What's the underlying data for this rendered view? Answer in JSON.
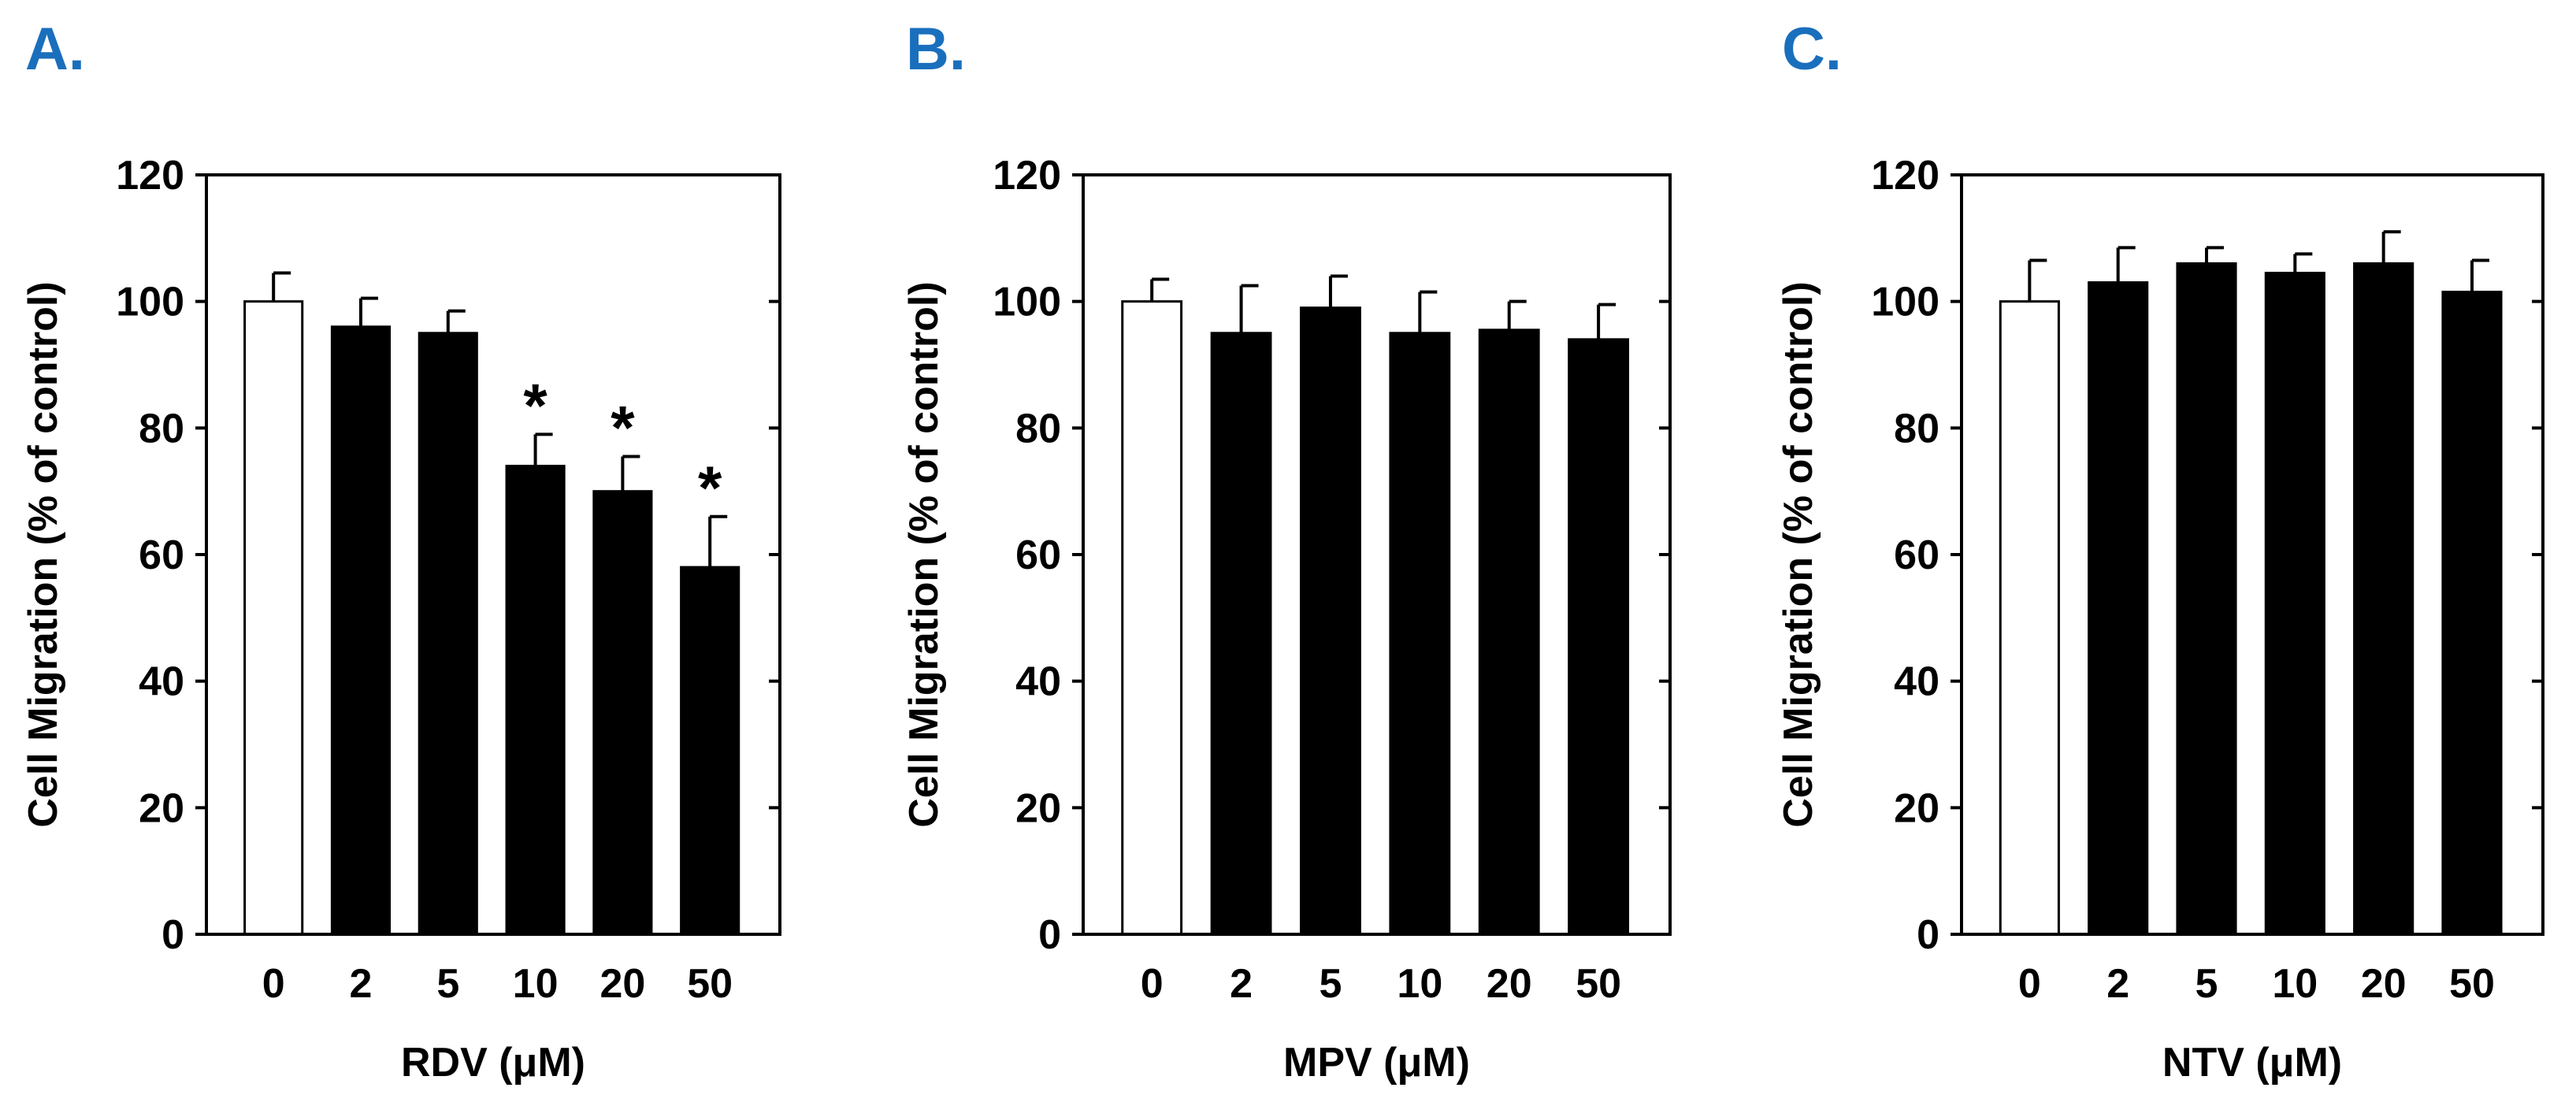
{
  "colors": {
    "panel_letter": "#1a6fbd",
    "bar_control": "#ffffff",
    "bar_treated": "#000000",
    "axis": "#000000"
  },
  "chart_data": [
    {
      "type": "bar",
      "panel_label": "A.",
      "title": "",
      "categories": [
        "0",
        "2",
        "5",
        "10",
        "20",
        "50"
      ],
      "values": [
        100,
        96,
        95,
        74,
        70,
        58
      ],
      "errors": [
        4.5,
        4.5,
        3.5,
        5,
        5.5,
        8
      ],
      "significant": [
        false,
        false,
        false,
        true,
        true,
        true
      ],
      "significance_marker": "*",
      "xlabel": "RDV (μM)",
      "ylabel": "Cell Migration (% of control)",
      "ylim": [
        0,
        120
      ],
      "yticks": [
        0,
        20,
        40,
        60,
        80,
        100,
        120
      ],
      "grid": false
    },
    {
      "type": "bar",
      "panel_label": "B.",
      "title": "",
      "categories": [
        "0",
        "2",
        "5",
        "10",
        "20",
        "50"
      ],
      "values": [
        100,
        95,
        99,
        95,
        95.5,
        94
      ],
      "errors": [
        3.5,
        7.5,
        5,
        6.5,
        4.5,
        5.5
      ],
      "significant": [
        false,
        false,
        false,
        false,
        false,
        false
      ],
      "significance_marker": "*",
      "xlabel": "MPV (μM)",
      "ylabel": "Cell Migration (% of control)",
      "ylim": [
        0,
        120
      ],
      "yticks": [
        0,
        20,
        40,
        60,
        80,
        100,
        120
      ],
      "grid": false
    },
    {
      "type": "bar",
      "panel_label": "C.",
      "title": "",
      "categories": [
        "0",
        "2",
        "5",
        "10",
        "20",
        "50"
      ],
      "values": [
        100,
        103,
        106,
        104.5,
        106,
        101.5
      ],
      "errors": [
        6.5,
        5.5,
        2.5,
        3,
        5,
        5
      ],
      "significant": [
        false,
        false,
        false,
        false,
        false,
        false
      ],
      "significance_marker": "*",
      "xlabel": "NTV (μM)",
      "ylabel": "Cell Migration (% of control)",
      "ylim": [
        0,
        120
      ],
      "yticks": [
        0,
        20,
        40,
        60,
        80,
        100,
        120
      ],
      "grid": false
    }
  ]
}
